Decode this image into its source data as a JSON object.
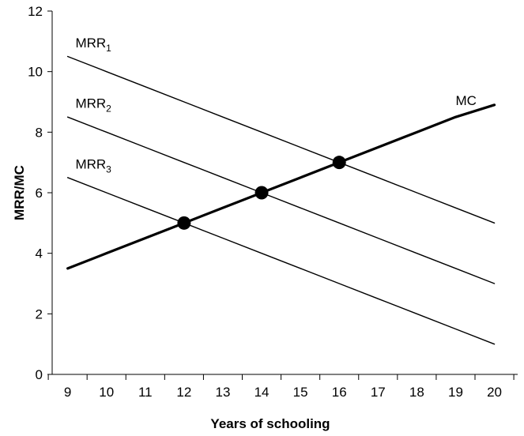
{
  "chart_data": {
    "type": "line",
    "title": "",
    "xlabel": "Years of schooling",
    "ylabel": "MRR/MC",
    "xlim": [
      8.6,
      20.6
    ],
    "ylim": [
      0,
      12
    ],
    "x_ticks": [
      9,
      10,
      11,
      12,
      13,
      14,
      15,
      16,
      17,
      18,
      19,
      20
    ],
    "y_ticks": [
      0,
      2,
      4,
      6,
      8,
      10,
      12
    ],
    "grid": false,
    "legend": "none",
    "series": [
      {
        "name": "MRR",
        "subscript": "1",
        "x": [
          9,
          10,
          11,
          12,
          13,
          14,
          15,
          16,
          17,
          18,
          19,
          20
        ],
        "y": [
          10.5,
          10.0,
          9.5,
          9.0,
          8.5,
          8.0,
          7.5,
          7.0,
          6.5,
          6.0,
          5.5,
          5.0
        ],
        "color": "#000000",
        "label_pos": [
          9.2,
          10.8
        ]
      },
      {
        "name": "MRR",
        "subscript": "2",
        "x": [
          9,
          10,
          11,
          12,
          13,
          14,
          15,
          16,
          17,
          18,
          19,
          20
        ],
        "y": [
          8.5,
          8.0,
          7.5,
          7.0,
          6.5,
          6.0,
          5.5,
          5.0,
          4.5,
          4.0,
          3.5,
          3.0
        ],
        "color": "#000000",
        "label_pos": [
          9.2,
          8.8
        ]
      },
      {
        "name": "MRR",
        "subscript": "3",
        "x": [
          9,
          10,
          11,
          12,
          13,
          14,
          15,
          16,
          17,
          18,
          19,
          20
        ],
        "y": [
          6.5,
          6.0,
          5.5,
          5.0,
          4.5,
          4.0,
          3.5,
          3.0,
          2.5,
          2.0,
          1.5,
          1.0
        ],
        "color": "#000000",
        "label_pos": [
          9.2,
          6.8
        ]
      },
      {
        "name": "MC",
        "subscript": "",
        "x": [
          9,
          10,
          11,
          12,
          13,
          14,
          15,
          16,
          17,
          18,
          19,
          20
        ],
        "y": [
          3.5,
          4.0,
          4.5,
          5.0,
          5.5,
          6.0,
          6.5,
          7.0,
          7.5,
          8.0,
          8.5,
          8.9
        ],
        "color": "#000000",
        "thick": true,
        "label_pos": [
          19.0,
          8.9
        ]
      }
    ],
    "intersections": [
      {
        "x": 12,
        "y": 5
      },
      {
        "x": 14,
        "y": 6
      },
      {
        "x": 16,
        "y": 7
      }
    ]
  }
}
